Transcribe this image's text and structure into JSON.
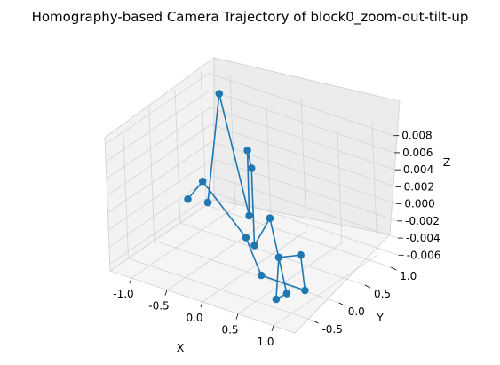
{
  "chart_data": {
    "type": "scatter",
    "projection": "3d",
    "title": "Homography-based Camera Trajectory of block0_zoom-out-tilt-up",
    "xlabel": "X",
    "ylabel": "Y",
    "zlabel": "Z",
    "xlim": [
      -1.3,
      1.3
    ],
    "ylim": [
      -0.85,
      1.15
    ],
    "zlim": [
      -0.0068,
      0.0088
    ],
    "xticks": [
      "-1.0",
      "-0.5",
      "0.0",
      "0.5",
      "1.0"
    ],
    "yticks": [
      "-0.5",
      "0.0",
      "0.5",
      "1.0"
    ],
    "zticks": [
      "-0.006",
      "-0.004",
      "-0.002",
      "0.000",
      "0.002",
      "0.004",
      "0.006",
      "0.008"
    ],
    "grid": true,
    "connected_markers": true,
    "color": "#1f77b4",
    "series": [
      {
        "x": [
          -1.2,
          -0.9,
          -0.35,
          -0.3,
          -0.1,
          0.05,
          0.4,
          0.75,
          0.9,
          1.0,
          1.2,
          1.05,
          0.55,
          0.2,
          -0.5,
          -0.95
        ],
        "y": [
          0.9,
          0.8,
          0.55,
          0.5,
          0.3,
          0.1,
          -0.05,
          -0.25,
          -0.65,
          -0.7,
          -0.55,
          -0.3,
          -0.45,
          -0.25,
          -0.1,
          0.2
        ],
        "z": [
          -0.0058,
          0.0082,
          -0.0035,
          0.0045,
          0.0038,
          -0.004,
          0.0008,
          -0.0062,
          -0.0048,
          0.0006,
          0.0008,
          -0.0048,
          -0.0038,
          -0.0012,
          0.0028,
          -0.0018
        ]
      }
    ]
  }
}
